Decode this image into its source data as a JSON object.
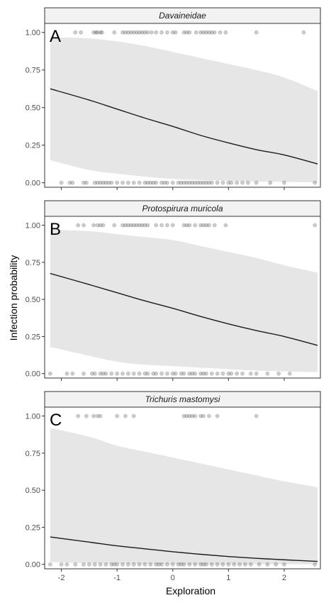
{
  "chart_data": {
    "type": "line",
    "layout": "faceted-vertical",
    "xlabel": "Exploration",
    "ylabel": "Infection probability",
    "xlim": [
      -2.3,
      2.65
    ],
    "ylim": [
      -0.03,
      1.06
    ],
    "x_ticks": [
      -2,
      -1,
      0,
      1,
      2
    ],
    "y_ticks": [
      0.0,
      0.25,
      0.5,
      0.75,
      1.0
    ],
    "y_tick_labels": [
      "0.00",
      "0.25",
      "0.50",
      "0.75",
      "1.00"
    ],
    "grid": false,
    "colors": {
      "ribbon": "#e6e6e6",
      "line": "#1a1a1a",
      "points": "#333333",
      "strip_fill": "#f2f2f2",
      "border": "#333333"
    },
    "panels": [
      {
        "letter": "A",
        "strip_title": "Davaineidae",
        "fit": {
          "x": [
            -2.2,
            -1.5,
            -1.0,
            -0.5,
            0.0,
            0.5,
            1.0,
            1.5,
            2.0,
            2.6
          ],
          "y": [
            0.625,
            0.55,
            0.49,
            0.43,
            0.375,
            0.315,
            0.265,
            0.22,
            0.185,
            0.125
          ],
          "lower": [
            0.15,
            0.085,
            0.06,
            0.04,
            0.025,
            0.018,
            0.012,
            0.008,
            0.005,
            0.002
          ],
          "upper": [
            0.97,
            0.96,
            0.94,
            0.91,
            0.87,
            0.83,
            0.79,
            0.75,
            0.7,
            0.61
          ]
        },
        "points_y1": [
          -1.75,
          -1.65,
          -1.42,
          -1.38,
          -1.35,
          -1.3,
          -1.27,
          -1.05,
          -0.9,
          -0.85,
          -0.8,
          -0.75,
          -0.7,
          -0.65,
          -0.6,
          -0.55,
          -0.5,
          -0.45,
          -0.38,
          -0.3,
          -0.2,
          -0.1,
          0.0,
          0.05,
          0.2,
          0.25,
          0.3,
          0.42,
          0.5,
          0.55,
          0.6,
          0.65,
          0.7,
          0.75,
          0.85,
          0.95,
          1.5,
          2.35
        ],
        "points_y0": [
          -2.0,
          -1.85,
          -1.8,
          -1.6,
          -1.55,
          -1.4,
          -1.35,
          -1.3,
          -1.25,
          -1.2,
          -1.15,
          -1.1,
          -1.0,
          -0.9,
          -0.8,
          -0.7,
          -0.6,
          -0.5,
          -0.45,
          -0.4,
          -0.35,
          -0.3,
          -0.2,
          -0.15,
          -0.1,
          0.0,
          0.1,
          0.15,
          0.2,
          0.25,
          0.3,
          0.35,
          0.4,
          0.45,
          0.5,
          0.55,
          0.6,
          0.65,
          0.7,
          0.8,
          0.9,
          1.0,
          1.05,
          1.15,
          1.25,
          1.35,
          1.5,
          1.75,
          2.0,
          2.55
        ]
      },
      {
        "letter": "B",
        "strip_title": "Protospirura muricola",
        "fit": {
          "x": [
            -2.2,
            -1.5,
            -1.0,
            -0.5,
            0.0,
            0.5,
            1.0,
            1.5,
            2.0,
            2.6
          ],
          "y": [
            0.675,
            0.6,
            0.545,
            0.49,
            0.44,
            0.385,
            0.335,
            0.29,
            0.25,
            0.19
          ],
          "lower": [
            0.18,
            0.12,
            0.08,
            0.06,
            0.05,
            0.04,
            0.03,
            0.02,
            0.015,
            0.01
          ],
          "upper": [
            0.97,
            0.96,
            0.94,
            0.92,
            0.9,
            0.86,
            0.82,
            0.78,
            0.73,
            0.68
          ]
        },
        "points_y1": [
          -1.7,
          -1.6,
          -1.42,
          -1.35,
          -1.3,
          -1.25,
          -1.05,
          -0.9,
          -0.85,
          -0.8,
          -0.75,
          -0.7,
          -0.65,
          -0.6,
          -0.55,
          -0.5,
          -0.45,
          -0.3,
          -0.2,
          -0.1,
          0.0,
          0.2,
          0.25,
          0.3,
          0.4,
          0.5,
          0.55,
          0.6,
          0.65,
          0.75,
          0.95,
          2.55
        ],
        "points_y0": [
          -2.2,
          -1.9,
          -1.8,
          -1.6,
          -1.45,
          -1.4,
          -1.3,
          -1.25,
          -1.2,
          -1.1,
          -1.0,
          -0.9,
          -0.8,
          -0.7,
          -0.6,
          -0.5,
          -0.45,
          -0.35,
          -0.3,
          -0.2,
          -0.1,
          0.0,
          0.05,
          0.15,
          0.2,
          0.3,
          0.35,
          0.4,
          0.5,
          0.55,
          0.6,
          0.7,
          0.8,
          0.9,
          1.0,
          1.05,
          1.15,
          1.25,
          1.4,
          1.5,
          1.7,
          1.9,
          2.1
        ]
      },
      {
        "letter": "C",
        "strip_title": "Trichuris mastomysi",
        "fit": {
          "x": [
            -2.2,
            -1.5,
            -1.0,
            -0.5,
            0.0,
            0.5,
            1.0,
            1.5,
            2.0,
            2.6
          ],
          "y": [
            0.185,
            0.15,
            0.125,
            0.105,
            0.085,
            0.068,
            0.053,
            0.041,
            0.031,
            0.02
          ],
          "lower": [
            0.015,
            0.008,
            0.005,
            0.003,
            0.002,
            0.001,
            0.001,
            0.0005,
            0.0003,
            0.0002
          ],
          "upper": [
            0.92,
            0.86,
            0.8,
            0.76,
            0.72,
            0.68,
            0.64,
            0.6,
            0.56,
            0.52
          ]
        },
        "points_y1": [
          -1.7,
          -1.55,
          -1.42,
          -1.35,
          -1.3,
          -1.0,
          -0.85,
          -0.7,
          0.2,
          0.25,
          0.3,
          0.35,
          0.4,
          0.5,
          0.55,
          0.65,
          0.8,
          1.5
        ],
        "points_y0": [
          -2.2,
          -2.0,
          -1.9,
          -1.75,
          -1.6,
          -1.5,
          -1.4,
          -1.3,
          -1.2,
          -1.1,
          -1.05,
          -1.0,
          -0.9,
          -0.8,
          -0.7,
          -0.6,
          -0.5,
          -0.4,
          -0.3,
          -0.25,
          -0.2,
          -0.1,
          0.0,
          0.1,
          0.15,
          0.2,
          0.3,
          0.4,
          0.5,
          0.55,
          0.6,
          0.7,
          0.8,
          0.9,
          1.0,
          1.1,
          1.2,
          1.3,
          1.4,
          1.55,
          1.7,
          1.85,
          2.0,
          2.55
        ]
      }
    ]
  }
}
